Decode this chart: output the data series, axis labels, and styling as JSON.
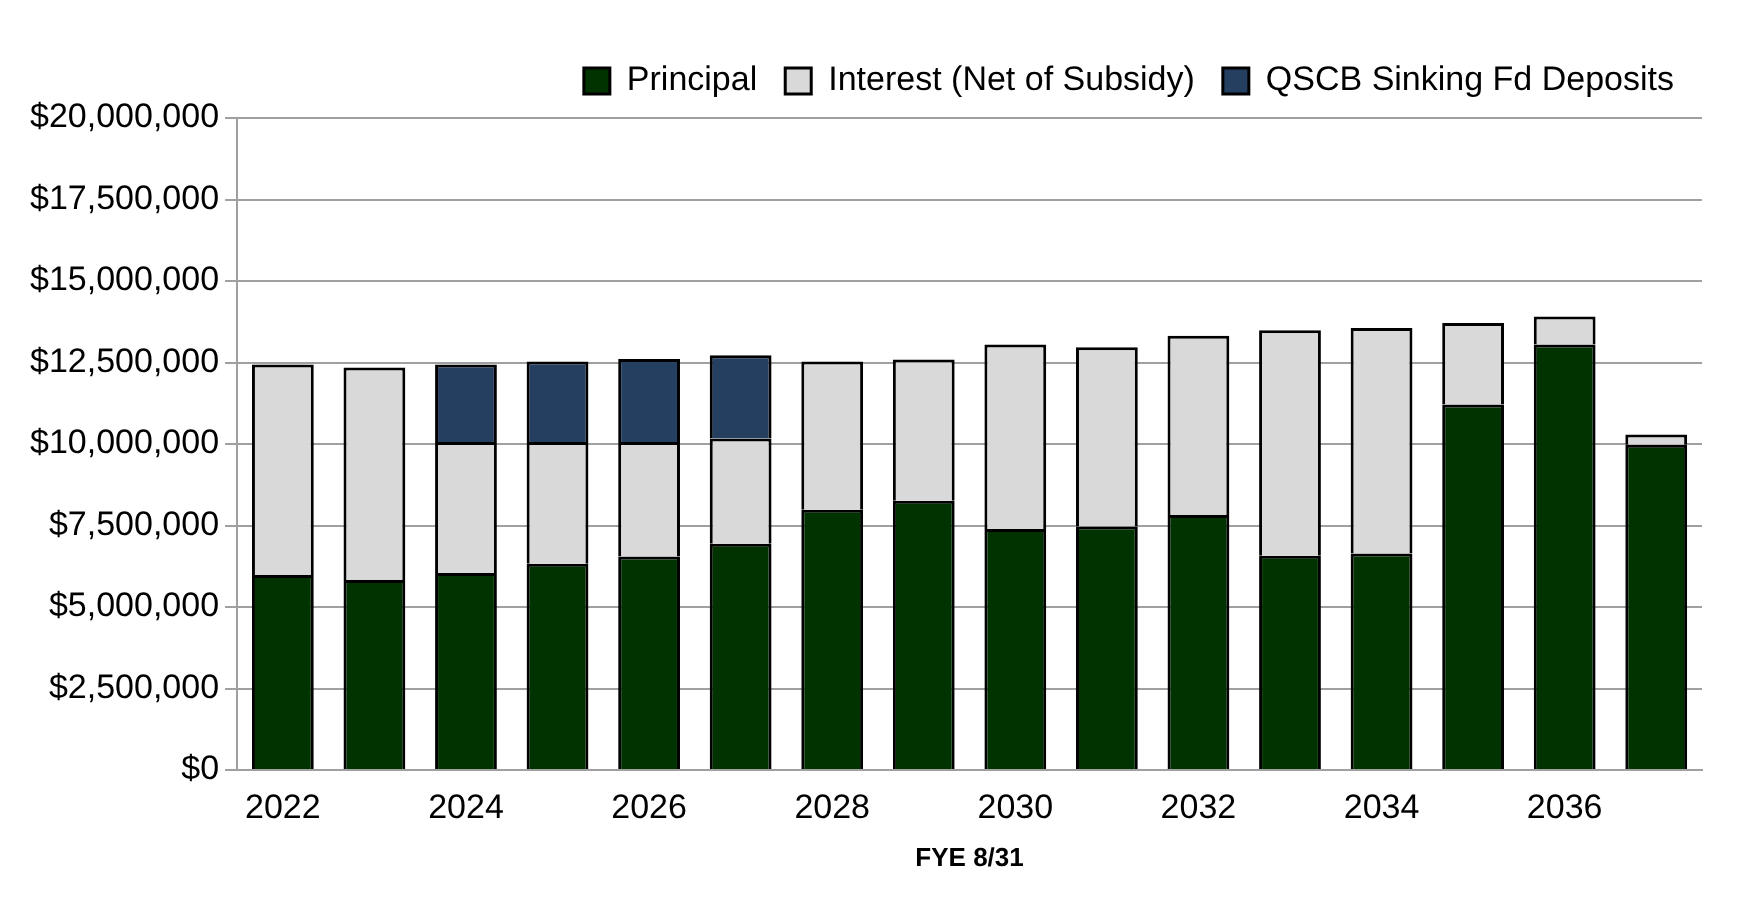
{
  "chart_data": {
    "type": "bar",
    "xlabel": "FYE 8/31",
    "categories": [
      "2022",
      null,
      "2024",
      null,
      "2026",
      null,
      "2028",
      null,
      "2030",
      null,
      "2032",
      null,
      "2034",
      null,
      "2036",
      null
    ],
    "stacked": true,
    "series": [
      {
        "name": "Principal",
        "color": "#003300",
        "values": [
          5980000,
          5830000,
          6040000,
          6330000,
          6550000,
          6940000,
          7980000,
          8260000,
          7390000,
          7470000,
          7820000,
          6570000,
          6640000,
          11210000,
          13050000,
          9980000
        ]
      },
      {
        "name": "Interest (Net of Subsidy)",
        "color": "#d9d9d9",
        "values": [
          6460000,
          6520000,
          4020000,
          3730000,
          3510000,
          3230000,
          4550000,
          4330000,
          5660000,
          5500000,
          5500000,
          6920000,
          6920000,
          2500000,
          860000,
          310000
        ]
      },
      {
        "name": "QSCB Sinking Fd Deposits",
        "color": "#243f60",
        "values": [
          null,
          null,
          2380000,
          2470000,
          2550000,
          2550000,
          null,
          null,
          null,
          null,
          null,
          null,
          null,
          null,
          null,
          null
        ]
      }
    ],
    "ylim": [
      0,
      20000000
    ],
    "yticks": [
      {
        "value": 0,
        "label": "$0"
      },
      {
        "value": 2500000,
        "label": "$2,500,000"
      },
      {
        "value": 5000000,
        "label": "$5,000,000"
      },
      {
        "value": 7500000,
        "label": "$7,500,000"
      },
      {
        "value": 10000000,
        "label": "$10,000,000"
      },
      {
        "value": 12500000,
        "label": "$12,500,000"
      },
      {
        "value": 15000000,
        "label": "$15,000,000"
      },
      {
        "value": 17500000,
        "label": "$17,500,000"
      },
      {
        "value": 20000000,
        "label": "$20,000,000"
      }
    ],
    "grid": "y",
    "legend": "top right"
  }
}
